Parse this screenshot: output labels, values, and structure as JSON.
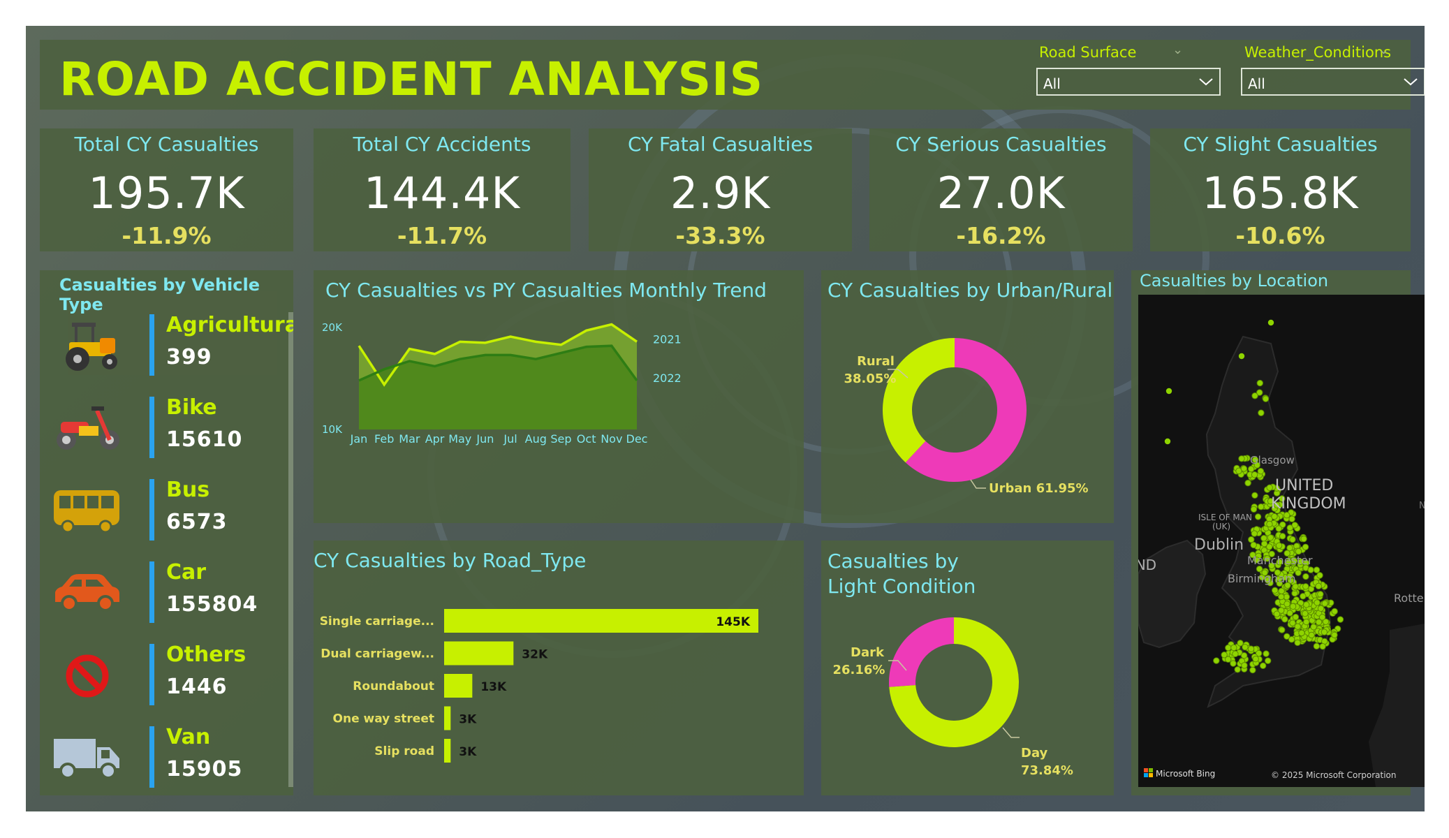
{
  "header": {
    "title": "ROAD ACCIDENT ANALYSIS"
  },
  "slicers": [
    {
      "label": "Road Surface",
      "value": "All"
    },
    {
      "label": "Weather_Conditions",
      "value": "All"
    }
  ],
  "kpis": [
    {
      "title": "Total CY Casualties",
      "value": "195.7K",
      "delta": "-11.9%"
    },
    {
      "title": "Total CY Accidents",
      "value": "144.4K",
      "delta": "-11.7%"
    },
    {
      "title": "CY Fatal Casualties",
      "value": "2.9K",
      "delta": "-33.3%"
    },
    {
      "title": "CY Serious Casualties",
      "value": "27.0K",
      "delta": "-16.2%"
    },
    {
      "title": "CY Slight Casualties",
      "value": "165.8K",
      "delta": "-10.6%"
    }
  ],
  "vehicle_panel": {
    "title": "Casualties by Vehicle Type",
    "items": [
      {
        "name": "Agricultural",
        "value": "399",
        "icon": "tractor-icon"
      },
      {
        "name": "Bike",
        "value": "15610",
        "icon": "motorbike-icon"
      },
      {
        "name": "Bus",
        "value": "6573",
        "icon": "bus-icon"
      },
      {
        "name": "Car",
        "value": "155804",
        "icon": "car-icon"
      },
      {
        "name": "Others",
        "value": "1446",
        "icon": "prohibited-icon"
      },
      {
        "name": "Van",
        "value": "15905",
        "icon": "van-icon"
      }
    ]
  },
  "map_panel": {
    "title": "Casualties by Location",
    "labels": [
      "Glasgow",
      "UNITED",
      "KINGDOM",
      "ISLE OF MAN",
      "(UK)",
      "Dublin",
      "Manchester",
      "Birmingham",
      "IRELAND",
      "Rotterdam",
      "Ne"
    ],
    "bing_label": "Microsoft Bing",
    "copyright": "© 2025 Microsoft Corporation"
  },
  "chart_data": [
    {
      "type": "area",
      "title": "CY Casualties vs PY Casualties Monthly Trend",
      "categories": [
        "Jan",
        "Feb",
        "Mar",
        "Apr",
        "May",
        "Jun",
        "Jul",
        "Aug",
        "Sep",
        "Oct",
        "Nov",
        "Dec"
      ],
      "y_ticks": [
        "10K",
        "20K"
      ],
      "ylim": [
        10000,
        21500
      ],
      "series": [
        {
          "name": "2021",
          "values": [
            18200,
            14400,
            17900,
            17400,
            18600,
            18500,
            19100,
            18600,
            18300,
            19700,
            20300,
            18600
          ]
        },
        {
          "name": "2022",
          "values": [
            14800,
            15900,
            16700,
            16200,
            16900,
            17300,
            17300,
            16900,
            17500,
            18100,
            18200,
            14800
          ]
        }
      ],
      "colors": {
        "cy": "#c7f000",
        "py": "#2e7d14",
        "cy_fill": "#7cab2d",
        "py_fill": "#4d861b"
      }
    },
    {
      "type": "pie",
      "title": "CY Casualties by Urban/Rural",
      "slices": [
        {
          "name": "Urban",
          "value": 61.95,
          "label": "Urban 61.95%",
          "color": "#ee3ab8"
        },
        {
          "name": "Rural",
          "value": 38.05,
          "label": "Rural",
          "pct": "38.05%",
          "color": "#c7f000"
        }
      ]
    },
    {
      "type": "bar",
      "title": "CY Casualties by Road_Type",
      "categories": [
        "Single carriage...",
        "Dual carriagew...",
        "Roundabout",
        "One way street",
        "Slip road"
      ],
      "values": [
        145000,
        32000,
        13000,
        3000,
        3000
      ],
      "data_labels": [
        "145K",
        "32K",
        "13K",
        "3K",
        "3K"
      ],
      "xlim": [
        0,
        145000
      ],
      "color": "#c7f000"
    },
    {
      "type": "pie",
      "title": "Casualties by Light Condition",
      "slices": [
        {
          "name": "Day",
          "value": 73.84,
          "label": "Day",
          "pct": "73.84%",
          "color": "#c7f000"
        },
        {
          "name": "Dark",
          "value": 26.16,
          "label": "Dark",
          "pct": "26.16%",
          "color": "#ee3ab8"
        }
      ]
    }
  ]
}
